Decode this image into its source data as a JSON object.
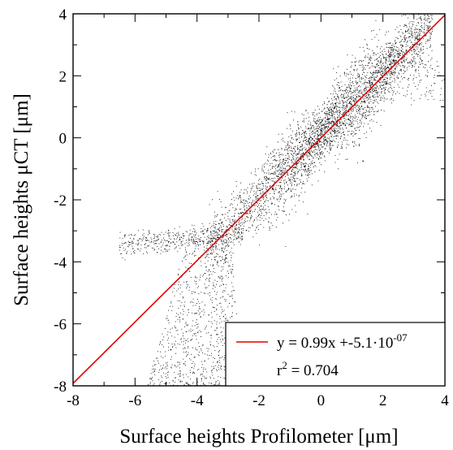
{
  "chart_data": {
    "type": "scatter",
    "xlabel": "Surface heights Profilometer [μm]",
    "ylabel": "Surface heights μCT [μm]",
    "xlim": [
      -8,
      4
    ],
    "ylim": [
      -8,
      4
    ],
    "xticks": [
      "-8",
      "-6",
      "-4",
      "-2",
      "0",
      "2",
      "4"
    ],
    "yticks": [
      "-8",
      "-6",
      "-4",
      "-2",
      "0",
      "2",
      "4"
    ],
    "grid": false,
    "legend_position": "bottom-right",
    "point_color": "#000000",
    "fit_color": "#e00000",
    "series": [
      {
        "kind": "points",
        "main_band": {
          "x_range": [
            -3.7,
            3.6
          ],
          "slope": 0.99,
          "spread": 0.55
        },
        "faint_tail": {
          "x_range": [
            -4.6,
            -0.8
          ],
          "y_range": [
            -8,
            -3.2
          ]
        },
        "left_spray": {
          "x_range": [
            -6.5,
            -2.5
          ],
          "y_range": [
            -3.6,
            -2.6
          ]
        }
      },
      {
        "kind": "fit",
        "slope": 0.99,
        "intercept": -5.1e-07
      }
    ],
    "legend": {
      "fit_label_main": "y = 0.99x +-5.1·10",
      "fit_label_exp": "-07",
      "r2_label_base": "r",
      "r2_label_exp": "2",
      "r2_label_value": " = 0.704"
    }
  }
}
